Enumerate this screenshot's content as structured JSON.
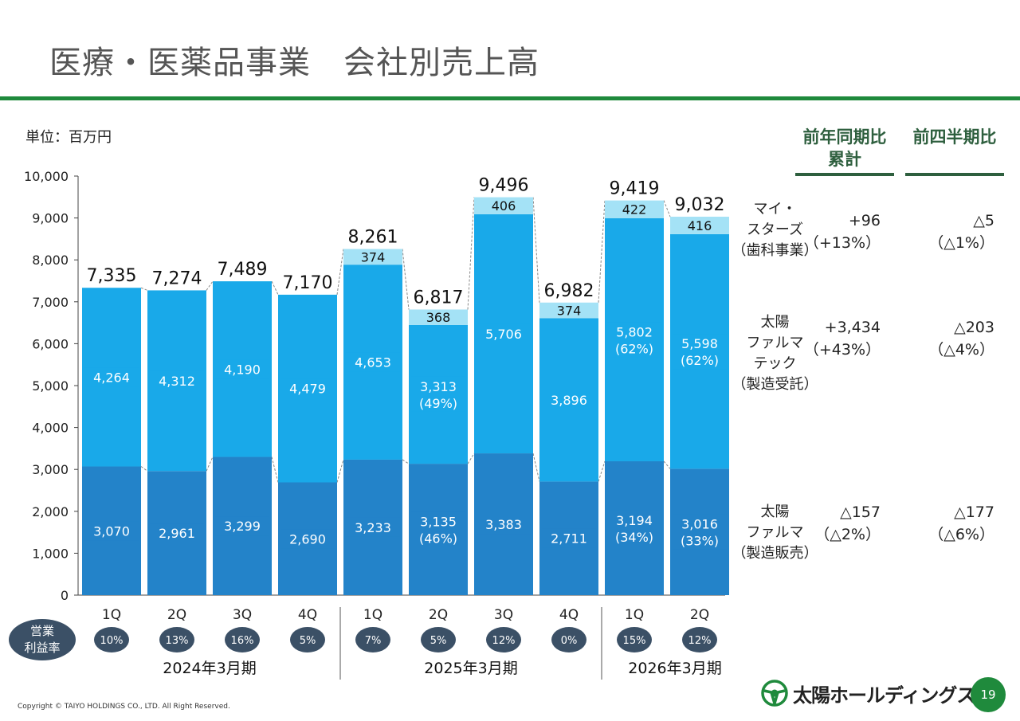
{
  "page_title": "医療・医薬品事業　会社別売上高",
  "unit_label": "単位：百万円",
  "header": {
    "yoy_line1": "前年同期比",
    "yoy_line2": "累計",
    "qoq": "前四半期比"
  },
  "segments": [
    {
      "label": [
        "マイ・",
        "スターズ",
        "（歯科事業）"
      ],
      "yoy": [
        "+96",
        "（+13%）"
      ],
      "qoq": [
        "△5",
        "（△1%）"
      ]
    },
    {
      "label": [
        "太陽",
        "ファルマ",
        "テック",
        "（製造受託）"
      ],
      "yoy": [
        "+3,434",
        "（+43%）"
      ],
      "qoq": [
        "△203",
        "（△4%）"
      ]
    },
    {
      "label": [
        "太陽",
        "ファルマ",
        "（製造販売）"
      ],
      "yoy": [
        "△157",
        "（△2%）"
      ],
      "qoq": [
        "△177",
        "（△6%）"
      ]
    }
  ],
  "margin_label": [
    "営業",
    "利益率"
  ],
  "colors": {
    "bottom": "#2383c9",
    "middle": "#19a9e9",
    "top": "#a4e2f6",
    "accent": "#1f8a3c",
    "pill": "#3b5066"
  },
  "chart_data": {
    "type": "bar",
    "stacked": true,
    "title": "医療・医薬品事業　会社別売上高",
    "ylabel": "単位：百万円",
    "ylim": [
      0,
      10000
    ],
    "yticks": [
      "0",
      "1,000",
      "2,000",
      "3,000",
      "4,000",
      "5,000",
      "6,000",
      "7,000",
      "8,000",
      "9,000",
      "10,000"
    ],
    "categories": [
      "1Q",
      "2Q",
      "3Q",
      "4Q",
      "1Q",
      "2Q",
      "3Q",
      "4Q",
      "1Q",
      "2Q"
    ],
    "fiscal_groups": [
      {
        "label": "2024年3月期",
        "count": 4
      },
      {
        "label": "2025年3月期",
        "count": 4
      },
      {
        "label": "2026年3月期",
        "count": 2
      }
    ],
    "series": [
      {
        "name": "太陽ファルマ（製造販売）",
        "values": [
          3070,
          2961,
          3299,
          2690,
          3233,
          3135,
          3383,
          2711,
          3194,
          3016
        ],
        "labels": [
          "3,070",
          "2,961",
          "3,299",
          "2,690",
          "3,233",
          "3,135",
          "3,383",
          "2,711",
          "3,194",
          "3,016"
        ],
        "shares": [
          "",
          "",
          "",
          "",
          "",
          "(46%)",
          "",
          "",
          "(34%)",
          "(33%)"
        ]
      },
      {
        "name": "太陽ファルマテック（製造受託）",
        "values": [
          4264,
          4312,
          4190,
          4479,
          4653,
          3313,
          5706,
          3896,
          5802,
          5598
        ],
        "labels": [
          "4,264",
          "4,312",
          "4,190",
          "4,479",
          "4,653",
          "3,313",
          "5,706",
          "3,896",
          "5,802",
          "5,598"
        ],
        "shares": [
          "",
          "",
          "",
          "",
          "",
          "(49%)",
          "",
          "",
          "(62%)",
          "(62%)"
        ]
      },
      {
        "name": "マイ・スターズ（歯科事業）",
        "values": [
          0,
          0,
          0,
          0,
          374,
          368,
          406,
          374,
          422,
          416
        ],
        "labels": [
          "",
          "",
          "",
          "",
          "374",
          "368",
          "406",
          "374",
          "422",
          "416"
        ],
        "shares": [
          "",
          "",
          "",
          "",
          "",
          "",
          "",
          "",
          "",
          ""
        ]
      }
    ],
    "totals": [
      7335,
      7274,
      7489,
      7170,
      8261,
      6817,
      9496,
      6982,
      9419,
      9032
    ],
    "total_labels": [
      "7,335",
      "7,274",
      "7,489",
      "7,170",
      "8,261",
      "6,817",
      "9,496",
      "6,982",
      "9,419",
      "9,032"
    ],
    "operating_margins": [
      "10%",
      "13%",
      "16%",
      "5%",
      "7%",
      "5%",
      "12%",
      "0%",
      "15%",
      "12%"
    ]
  },
  "footer": "Copyright © TAIYO HOLDINGS CO., LTD.  All Right Reserved.",
  "logo_text": "太陽ホールディングス",
  "page_number": "19"
}
